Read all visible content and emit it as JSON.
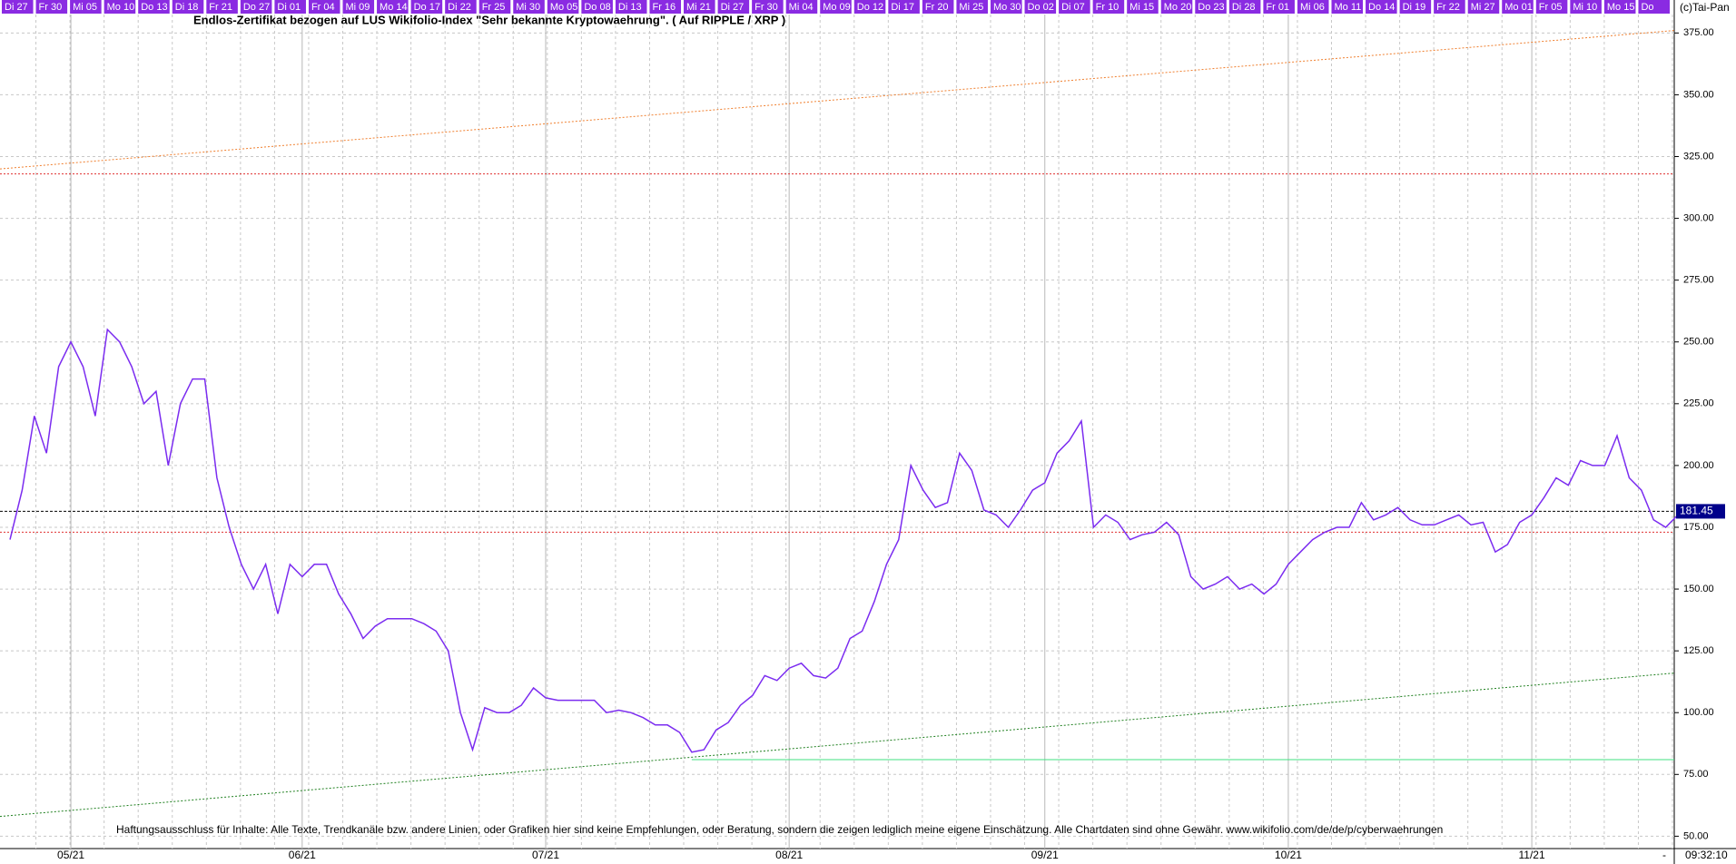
{
  "chart_data": {
    "type": "line",
    "title": "Endlos-Zertifikat bezogen auf LUS Wikifolio-Index \"Sehr bekannte Kryptowaehrung\". ( Auf RIPPLE / XRP )",
    "copyright": "(c)Tai-Pan",
    "disclaimer": "Haftungsausschluss für Inhalte: Alle Texte, Trendkanäle bzw. andere Linien, oder Grafiken hier sind keine Empfehlungen, oder Beratung, sondern die zeigen lediglich meine eigene Einschätzung. Alle Chartdaten sind ohne Gewähr.  www.wikifolio.com/de/de/p/cyberwaehrungen",
    "time": "09:32:10",
    "corner_mark": "-",
    "top_labels": [
      "Di 27",
      "Fr 30",
      "Mi 05",
      "Mo 10",
      "Do 13",
      "Di 18",
      "Fr 21",
      "Do 27",
      "Di 01",
      "Fr 04",
      "Mi 09",
      "Mo 14",
      "Do 17",
      "Di 22",
      "Fr 25",
      "Mi 30",
      "Mo 05",
      "Do 08",
      "Di 13",
      "Fr 16",
      "Mi 21",
      "Di 27",
      "Fr 30",
      "Mi 04",
      "Mo 09",
      "Do 12",
      "Di 17",
      "Fr 20",
      "Mi 25",
      "Mo 30",
      "Do 02",
      "Di 07",
      "Fr 10",
      "Mi 15",
      "Mo 20",
      "Do 23",
      "Di 28",
      "Fr 01",
      "Mi 06",
      "Mo 11",
      "Do 14",
      "Di 19",
      "Fr 22",
      "Mi 27",
      "Mo 01",
      "Fr 05",
      "Mi 10",
      "Mo 15",
      "Do"
    ],
    "categories": [
      null,
      null,
      null,
      null,
      null,
      "05/21",
      null,
      null,
      null,
      null,
      null,
      null,
      null,
      null,
      null,
      null,
      null,
      null,
      null,
      null,
      null,
      null,
      null,
      null,
      "06/21",
      null,
      null,
      null,
      null,
      null,
      null,
      null,
      null,
      null,
      null,
      null,
      null,
      null,
      null,
      null,
      null,
      null,
      null,
      null,
      "07/21",
      null,
      null,
      null,
      null,
      null,
      null,
      null,
      null,
      null,
      null,
      null,
      null,
      null,
      null,
      null,
      null,
      null,
      null,
      null,
      "08/21",
      null,
      null,
      null,
      null,
      null,
      null,
      null,
      null,
      null,
      null,
      null,
      null,
      null,
      null,
      null,
      null,
      null,
      null,
      null,
      null,
      "09/21",
      null,
      null,
      null,
      null,
      null,
      null,
      null,
      null,
      null,
      null,
      null,
      null,
      null,
      null,
      null,
      null,
      null,
      null,
      null,
      "10/21",
      null,
      null,
      null,
      null,
      null,
      null,
      null,
      null,
      null,
      null,
      null,
      null,
      null,
      null,
      null,
      null,
      null,
      null,
      null,
      "11/21",
      null,
      null,
      null,
      null,
      null,
      null,
      null,
      null,
      null,
      null,
      null,
      null
    ],
    "series": [
      {
        "name": "XRP",
        "color": "#7b2cf0",
        "values": [
          170,
          190,
          220,
          205,
          240,
          250,
          240,
          220,
          255,
          250,
          240,
          225,
          230,
          200,
          225,
          235,
          235,
          195,
          175,
          160,
          150,
          160,
          140,
          160,
          155,
          160,
          160,
          148,
          140,
          130,
          135,
          138,
          138,
          138,
          136,
          133,
          125,
          100,
          85,
          102,
          100,
          100,
          103,
          110,
          106,
          105,
          105,
          105,
          105,
          100,
          101,
          100,
          98,
          95,
          95,
          92,
          84,
          85,
          93,
          96,
          103,
          107,
          115,
          113,
          118,
          120,
          115,
          114,
          118,
          130,
          133,
          145,
          160,
          170,
          200,
          190,
          183,
          185,
          205,
          198,
          182,
          180,
          175,
          182,
          190,
          193,
          205,
          210,
          218,
          175,
          180,
          177,
          170,
          172,
          173,
          177,
          172,
          155,
          150,
          152,
          155,
          150,
          152,
          148,
          152,
          160,
          165,
          170,
          173,
          175,
          175,
          185,
          178,
          180,
          183,
          178,
          176,
          176,
          178,
          180,
          176,
          177,
          165,
          168,
          177,
          180,
          187,
          195,
          192,
          202,
          200,
          200,
          212,
          195,
          190,
          178,
          175,
          180
        ]
      }
    ],
    "last_value": {
      "value": 181.45,
      "label": "181.45",
      "color": "#000000"
    },
    "hlines": [
      {
        "value": 318,
        "color": "#e03030"
      },
      {
        "value": 173,
        "color": "#e03030"
      }
    ],
    "support": {
      "value": 81,
      "color": "#40e080"
    },
    "trendlines": [
      {
        "values": [
          320,
          376
        ],
        "color": "#f08030"
      },
      {
        "values": [
          58,
          116
        ],
        "color": "#208020"
      }
    ],
    "ylim": [
      45,
      381
    ],
    "yticks": [
      {
        "value": 50,
        "label": "50.00"
      },
      {
        "value": 75,
        "label": "75.00"
      },
      {
        "value": 100,
        "label": "100.00"
      },
      {
        "value": 125,
        "label": "125.00"
      },
      {
        "value": 150,
        "label": "150.00"
      },
      {
        "value": 175,
        "label": "175.00"
      },
      {
        "value": 200,
        "label": "200.00"
      },
      {
        "value": 225,
        "label": "225.00"
      },
      {
        "value": 250,
        "label": "250.00"
      },
      {
        "value": 275,
        "label": "275.00"
      },
      {
        "value": 300,
        "label": "300.00"
      },
      {
        "value": 325,
        "label": "325.00"
      },
      {
        "value": 350,
        "label": "350.00"
      },
      {
        "value": 375,
        "label": "375.00"
      }
    ],
    "grid": true
  }
}
